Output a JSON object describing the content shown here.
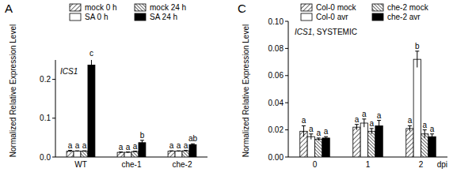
{
  "chart_data": [
    {
      "type": "bar",
      "title": "A",
      "subtitle": "ICS1",
      "y_label": "Normalized Relative Expression Level",
      "categories": [
        "WT",
        "che-1",
        "che-2"
      ],
      "ylim": [
        0,
        0.25
      ],
      "yticks": [
        {
          "value": 0,
          "label": "0.0"
        },
        0.1,
        0.2
      ],
      "legend": "top",
      "series": [
        {
          "name": "mock 0 h",
          "color": "#ffffff",
          "values": [
            0.015,
            0.012,
            0.015
          ],
          "errors": [
            0.002,
            0.001,
            0.001
          ],
          "annotations": [
            "a",
            "a",
            "a"
          ]
        },
        {
          "name": "SA 0 h",
          "color": "#ffffff",
          "values": [
            0.015,
            0.012,
            0.015
          ],
          "errors": [
            0.001,
            0.001,
            0.001
          ],
          "annotations": [
            "a",
            "a",
            "a"
          ]
        },
        {
          "name": "mock 24 h",
          "color": "#ffffff",
          "values": [
            0.015,
            0.014,
            0.016
          ],
          "errors": [
            0.001,
            0.001,
            0.001
          ],
          "annotations": [
            "a",
            "a",
            "a"
          ]
        },
        {
          "name": "SA 24 h",
          "color": "#000000",
          "values": [
            0.237,
            0.037,
            0.032
          ],
          "errors": [
            0.017,
            0.006,
            0.002
          ],
          "annotations": [
            "c",
            "b",
            "ab"
          ]
        }
      ]
    },
    {
      "type": "bar",
      "title": "C",
      "subtitle": "ICS1, SYSTEMIC",
      "y_label": "Normalized Relative Expression Level",
      "x_label": "dpi",
      "categories": [
        "0",
        "1",
        "2"
      ],
      "ylim": [
        0,
        0.1
      ],
      "yticks": [
        {
          "value": 0,
          "label": "0.00"
        },
        0.02,
        0.04,
        0.06,
        0.08,
        {
          "value": 0.1,
          "label": "0.10"
        }
      ],
      "legend": "top",
      "series": [
        {
          "name": "Col-0 mock",
          "color": "#ffffff",
          "values": [
            0.019,
            0.022,
            0.021
          ],
          "errors": [
            0.004,
            0.002,
            0.002
          ],
          "annotations": [
            "a",
            "a",
            "a"
          ]
        },
        {
          "name": "Col-0 avr",
          "color": "#ffffff",
          "values": [
            0.015,
            0.025,
            0.072
          ],
          "errors": [
            0.002,
            0.003,
            0.006
          ],
          "annotations": [
            "a",
            "a",
            "b"
          ]
        },
        {
          "name": "che-2 mock",
          "color": "#ffffff",
          "values": [
            0.013,
            0.019,
            0.017
          ],
          "errors": [
            0.001,
            0.002,
            0.003
          ],
          "annotations": [
            "a",
            "a",
            "a"
          ]
        },
        {
          "name": "che-2 avr",
          "color": "#000000",
          "values": [
            0.014,
            0.023,
            0.015
          ],
          "errors": [
            0.001,
            0.004,
            0.002
          ],
          "annotations": [
            "a",
            "a",
            "a"
          ]
        }
      ]
    }
  ]
}
